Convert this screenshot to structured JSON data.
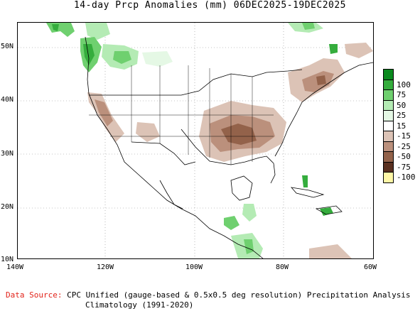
{
  "title": "14-day Prcp Anomalies (mm) 06DEC2025-19DEC2025",
  "map": {
    "lat_labels": [
      "50N",
      "40N",
      "30N",
      "20N",
      "10N"
    ],
    "lon_labels": [
      "140W",
      "120W",
      "100W",
      "80W",
      "60W"
    ]
  },
  "legend": {
    "labels": [
      "100",
      "75",
      "50",
      "25",
      "15",
      "-15",
      "-25",
      "-50",
      "-75",
      "-100"
    ],
    "colors": [
      "#0a8a1e",
      "#35ad3d",
      "#6fd06f",
      "#b4ebb4",
      "#e5f8e5",
      "#ffffff",
      "#dcc3b6",
      "#bb907c",
      "#93624a",
      "#5a3020",
      "#fff7a6"
    ]
  },
  "colors": {
    "land_line": "#000000",
    "grid": "#8c8c8c",
    "wet": "#35ad3d",
    "wet_light": "#9ddf9d",
    "dry": "#bb907c",
    "dry_dark": "#93624a"
  },
  "footer": {
    "source_label": "Data Source:",
    "source_text": "CPC Unified (gauge-based & 0.5x0.5 deg resolution) Precipitation Analysis",
    "climatology": "Climatology (1991-2020)"
  }
}
